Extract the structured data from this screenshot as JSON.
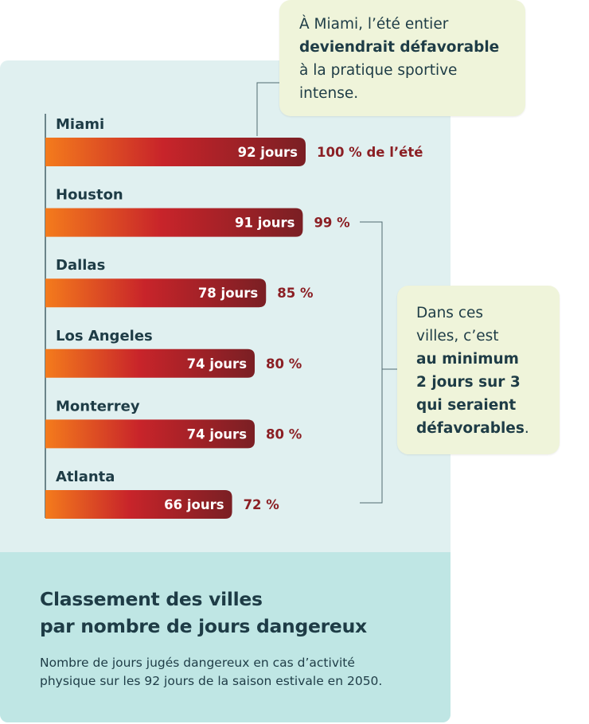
{
  "title_line1": "Classement des villes",
  "title_line2": "par nombre de jours dangereux",
  "subtitle_line1": "Nombre de jours jugés dangereux en cas d’activité",
  "subtitle_line2": "physique sur les 92 jours de la saison estivale en 2050.",
  "callout_top": {
    "line1": "À Miami, l’été entier",
    "line2": "deviendrait défavorable",
    "line3": "à la pratique sportive",
    "line4": "intense."
  },
  "callout_right": {
    "line1": "Dans ces",
    "line2": "villes, c’est",
    "line3": "au minimum",
    "line4": "2 jours sur 3",
    "line5": "qui seraient",
    "line6_bold": "défavorables",
    "line6_end": "."
  },
  "colors": {
    "bar_start": "#f47b1c",
    "bar_mid": "#c8242a",
    "bar_end": "#7a1f24",
    "value_label": "#8b1f24",
    "city_label": "#1e3c46",
    "panel": "#e0f0f0",
    "footer": "#bfe6e4",
    "callout": "#eff4da"
  },
  "chart_data": {
    "type": "bar",
    "orientation": "horizontal",
    "categories": [
      "Miami",
      "Houston",
      "Dallas",
      "Los Angeles",
      "Monterrey",
      "Atlanta"
    ],
    "values": [
      92,
      91,
      78,
      74,
      74,
      66
    ],
    "bar_labels": [
      "92 jours",
      "91 jours",
      "78 jours",
      "74 jours",
      "74 jours",
      "66 jours"
    ],
    "percent_labels": [
      "100 % de l’été",
      "99 %",
      "85 %",
      "80 %",
      "80 %",
      "72 %"
    ],
    "title": "Classement des villes par nombre de jours dangereux",
    "xlim": [
      0,
      92
    ],
    "grid": false,
    "legend": "none"
  }
}
